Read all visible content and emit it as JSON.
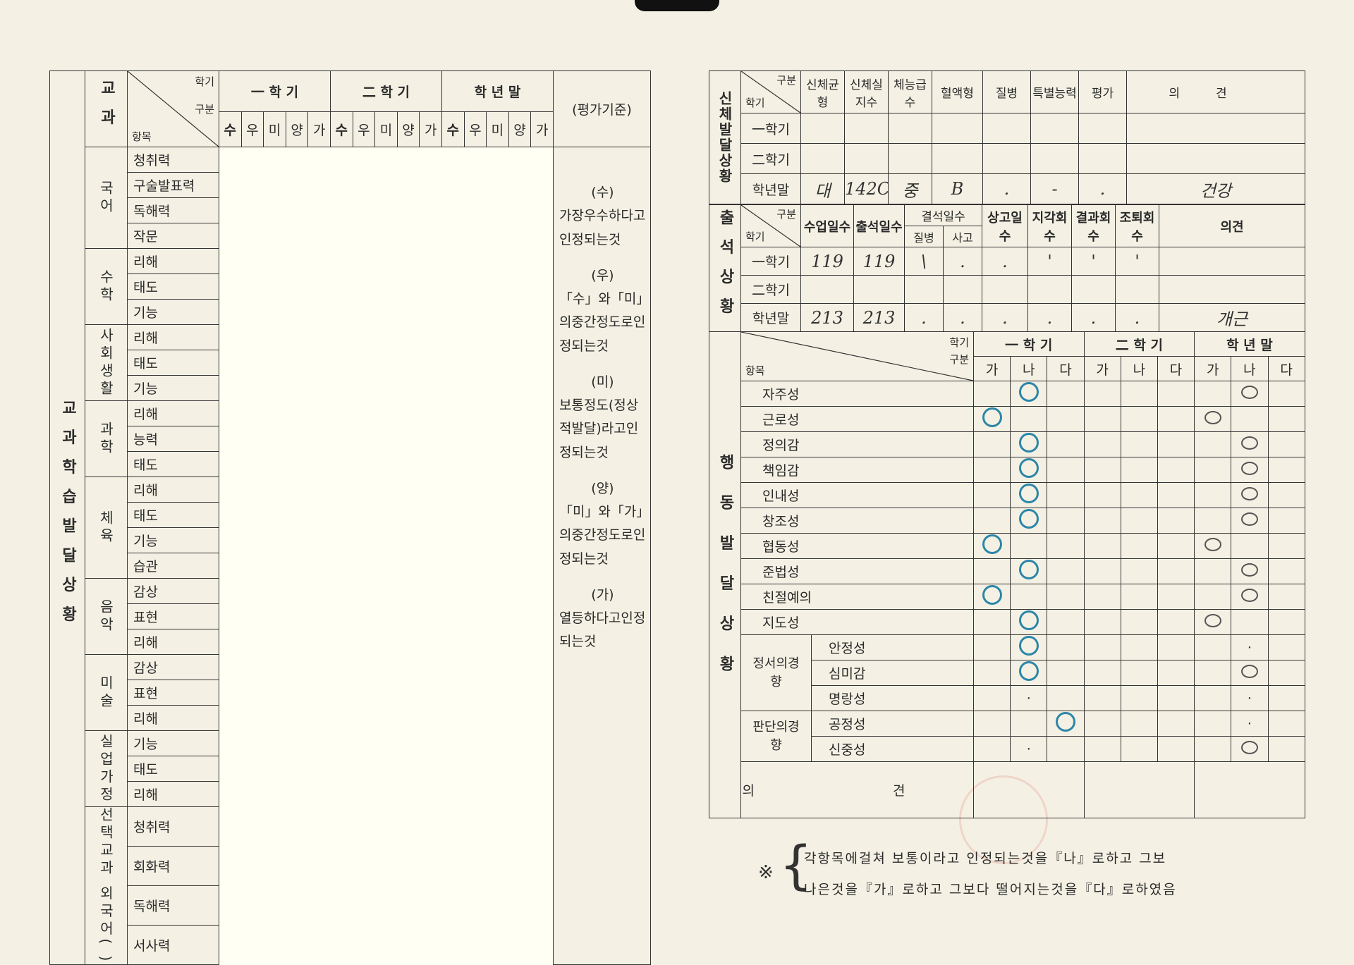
{
  "left": {
    "section_label": "교과학습발달상황",
    "subject_header": "교과",
    "diag": {
      "term": "학기",
      "category": "구분",
      "item": "항목"
    },
    "terms": [
      "一 학 기",
      "二 학 기",
      "학 년 말"
    ],
    "grades": [
      "수",
      "우",
      "미",
      "양",
      "가"
    ],
    "criteria_header": "(평가기준)",
    "criteria": [
      {
        "grade": "(수)",
        "text": "가장우수하다고인정되는것"
      },
      {
        "grade": "(우)",
        "text": "「수」와「미」의중간정도로인정되는것"
      },
      {
        "grade": "(미)",
        "text": "보통정도(정상적발달)라고인정되는것"
      },
      {
        "grade": "(양)",
        "text": "「미」와「가」의중간정도로인정되는것"
      },
      {
        "grade": "(가)",
        "text": "열등하다고인정되는것"
      }
    ],
    "subjects": [
      {
        "name": "국어",
        "items": [
          "청취력",
          "구술발표력",
          "독해력",
          "작문"
        ]
      },
      {
        "name": "수학",
        "items": [
          "리해",
          "태도",
          "기능"
        ]
      },
      {
        "name": "사회생활",
        "items": [
          "리해",
          "태도",
          "기능"
        ]
      },
      {
        "name": "과학",
        "items": [
          "리해",
          "능력",
          "태도"
        ]
      },
      {
        "name": "체육",
        "items": [
          "리해",
          "태도",
          "기능",
          "습관"
        ]
      },
      {
        "name": "음악",
        "items": [
          "감상",
          "표현",
          "리해"
        ]
      },
      {
        "name": "미술",
        "items": [
          "감상",
          "표현",
          "리해"
        ]
      },
      {
        "name": "실업가정",
        "items": [
          "기능",
          "태도",
          "리해"
        ]
      },
      {
        "name": "선택교과 외국어( )",
        "items": [
          "청취력",
          "회화력",
          "독해력",
          "서사력"
        ]
      }
    ]
  },
  "physical": {
    "section_label": "신체발달상황",
    "diag": {
      "category": "구분",
      "term": "학기"
    },
    "columns": [
      "신체균형",
      "신체실지수",
      "체능급수",
      "혈액형",
      "질병",
      "특별능력",
      "평가",
      "의견"
    ],
    "rows": [
      {
        "term": "一학기",
        "values": [
          "",
          "",
          "",
          "",
          "",
          "",
          "",
          ""
        ]
      },
      {
        "term": "二학기",
        "values": [
          "",
          "",
          "",
          "",
          "",
          "",
          "",
          ""
        ]
      },
      {
        "term": "학년말",
        "values": [
          "대",
          "142C",
          "중",
          "B",
          ".",
          "-",
          ".",
          "건강"
        ]
      }
    ]
  },
  "attendance": {
    "section_label": "출석상황",
    "diag": {
      "category": "구분",
      "term": "학기"
    },
    "columns": [
      "수업일수",
      "출석일수",
      "결석일수",
      "상고일수",
      "지각회수",
      "결과회수",
      "조퇴회수",
      "의견"
    ],
    "absence_sub": [
      "질병",
      "사고"
    ],
    "rows": [
      {
        "term": "一학기",
        "values": [
          "119",
          "119",
          "\\",
          ".",
          ".",
          "'",
          "'",
          "'",
          ""
        ]
      },
      {
        "term": "二학기",
        "values": [
          "",
          "",
          "",
          "",
          "",
          "",
          "",
          "",
          ""
        ]
      },
      {
        "term": "학년말",
        "values": [
          "213",
          "213",
          ".",
          ".",
          ".",
          ".",
          ".",
          ".",
          "개근"
        ]
      }
    ]
  },
  "behavior": {
    "section_label": "행동발달상황",
    "diag": {
      "term": "학기",
      "category": "구분",
      "item": "항목"
    },
    "terms": [
      "一 학 기",
      "二 학 기",
      "학 년 말"
    ],
    "grades": [
      "가",
      "나",
      "다"
    ],
    "items": [
      {
        "name": "자주성",
        "term1": "나",
        "term2": "",
        "year": "나"
      },
      {
        "name": "근로성",
        "term1": "가",
        "term2": "",
        "year": "가"
      },
      {
        "name": "정의감",
        "term1": "나",
        "term2": "",
        "year": "나"
      },
      {
        "name": "책임감",
        "term1": "나",
        "term2": "",
        "year": "나"
      },
      {
        "name": "인내성",
        "term1": "나",
        "term2": "",
        "year": "나"
      },
      {
        "name": "창조성",
        "term1": "나",
        "term2": "",
        "year": "나"
      },
      {
        "name": "협동성",
        "term1": "가",
        "term2": "",
        "year": "가"
      },
      {
        "name": "준법성",
        "term1": "나",
        "term2": "",
        "year": "나"
      },
      {
        "name": "친절예의",
        "term1": "가",
        "term2": "",
        "year": "나"
      },
      {
        "name": "지도성",
        "term1": "나",
        "term2": "",
        "year": "가"
      }
    ],
    "groups": [
      {
        "name": "정서의경향",
        "items": [
          {
            "name": "안정성",
            "term1": "나",
            "term2": "",
            "year": "."
          },
          {
            "name": "심미감",
            "term1": "나",
            "term2": "",
            "year": "나"
          },
          {
            "name": "명랑성",
            "term1": ".",
            "term2": "",
            "year": "."
          }
        ]
      },
      {
        "name": "판단의경향",
        "items": [
          {
            "name": "공정성",
            "term1": "다",
            "term2": "",
            "year": "."
          },
          {
            "name": "신중성",
            "term1": ".",
            "term2": "",
            "year": "나"
          }
        ]
      }
    ],
    "opinion_label": "의 견",
    "opinion": "",
    "note": {
      "symbol": "※",
      "line1": "각항목에걸쳐 보통이라고 인정되는것을『나』로하고 그보",
      "line2": "나은것을『가』로하고 그보다 떨어지는것을『다』로하였음"
    }
  },
  "colors": {
    "paper": "#f4f1e4",
    "ink": "#2a2a2a",
    "blue_ink": "#2c86a8",
    "stamp": "#dc5a50"
  }
}
